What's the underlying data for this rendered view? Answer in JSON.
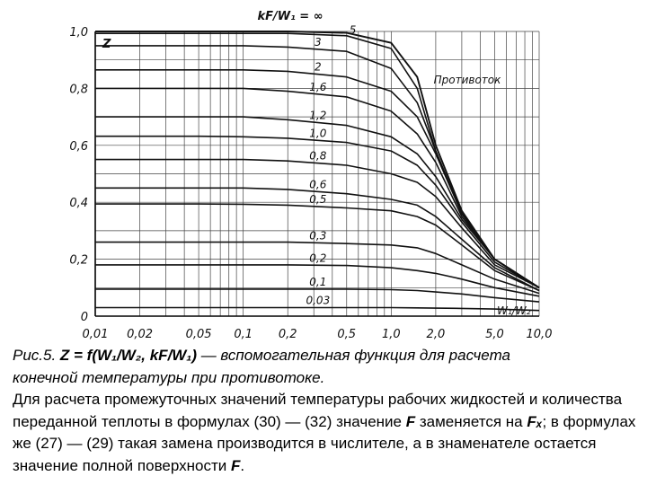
{
  "chart_data": {
    "type": "line",
    "title": "kF/W₁ = ∞",
    "ylabel": "Z",
    "xlabel": "W₁/W₂",
    "xscale": "log",
    "xlim": [
      0.01,
      10.0
    ],
    "ylim": [
      0,
      1.0
    ],
    "x_ticks": [
      "0,01",
      "0,02",
      "0,05",
      "0,1",
      "0,2",
      "0,5",
      "1,0",
      "2,0",
      "5,0",
      "10,0"
    ],
    "y_ticks": [
      "0",
      "0,2",
      "0,4",
      "0,6",
      "0,8",
      "1,0"
    ],
    "annotations": [
      "Противоток"
    ],
    "grid": true,
    "x": [
      0.01,
      0.02,
      0.05,
      0.1,
      0.2,
      0.5,
      1.0,
      1.5,
      2.0,
      3.0,
      5.0,
      10.0
    ],
    "series": [
      {
        "name": "∞",
        "values": [
          1.0,
          1.0,
          1.0,
          1.0,
          1.0,
          0.995,
          0.96,
          0.84,
          0.6,
          0.37,
          0.2,
          0.1
        ]
      },
      {
        "name": "5",
        "values": [
          0.993,
          0.993,
          0.993,
          0.993,
          0.993,
          0.985,
          0.94,
          0.8,
          0.58,
          0.36,
          0.2,
          0.1
        ]
      },
      {
        "name": "3",
        "values": [
          0.95,
          0.95,
          0.95,
          0.95,
          0.945,
          0.93,
          0.87,
          0.75,
          0.58,
          0.36,
          0.2,
          0.1
        ]
      },
      {
        "name": "2",
        "values": [
          0.865,
          0.865,
          0.865,
          0.865,
          0.86,
          0.84,
          0.79,
          0.7,
          0.57,
          0.36,
          0.2,
          0.1
        ]
      },
      {
        "name": "1,6",
        "values": [
          0.8,
          0.8,
          0.8,
          0.8,
          0.79,
          0.77,
          0.72,
          0.64,
          0.54,
          0.35,
          0.2,
          0.1
        ]
      },
      {
        "name": "1,2",
        "values": [
          0.7,
          0.7,
          0.7,
          0.7,
          0.69,
          0.67,
          0.63,
          0.57,
          0.49,
          0.34,
          0.2,
          0.1
        ]
      },
      {
        "name": "1,0",
        "values": [
          0.632,
          0.632,
          0.632,
          0.63,
          0.625,
          0.61,
          0.58,
          0.53,
          0.46,
          0.33,
          0.19,
          0.1
        ]
      },
      {
        "name": "0,8",
        "values": [
          0.55,
          0.55,
          0.55,
          0.55,
          0.545,
          0.53,
          0.5,
          0.47,
          0.42,
          0.31,
          0.18,
          0.1
        ]
      },
      {
        "name": "0,6",
        "values": [
          0.45,
          0.45,
          0.45,
          0.45,
          0.445,
          0.43,
          0.41,
          0.39,
          0.35,
          0.27,
          0.17,
          0.09
        ]
      },
      {
        "name": "0,5",
        "values": [
          0.394,
          0.394,
          0.394,
          0.393,
          0.39,
          0.38,
          0.37,
          0.35,
          0.32,
          0.25,
          0.16,
          0.09
        ]
      },
      {
        "name": "0,3",
        "values": [
          0.26,
          0.26,
          0.26,
          0.26,
          0.26,
          0.255,
          0.25,
          0.24,
          0.22,
          0.18,
          0.13,
          0.08
        ]
      },
      {
        "name": "0,2",
        "values": [
          0.18,
          0.18,
          0.18,
          0.18,
          0.18,
          0.178,
          0.17,
          0.16,
          0.15,
          0.13,
          0.1,
          0.07
        ]
      },
      {
        "name": "0,1",
        "values": [
          0.095,
          0.095,
          0.095,
          0.095,
          0.095,
          0.095,
          0.093,
          0.09,
          0.085,
          0.078,
          0.065,
          0.05
        ]
      },
      {
        "name": "0,03",
        "values": [
          0.03,
          0.03,
          0.03,
          0.03,
          0.03,
          0.03,
          0.03,
          0.029,
          0.028,
          0.027,
          0.025,
          0.02
        ]
      }
    ]
  },
  "caption": {
    "line1_pre": "Рис.5. ",
    "line1_formula": "Z = f(W₁/W₂, kF/W₁)",
    "line1_post": " — вспомогательная функция для расчета",
    "line2": "конечной температуры при противотоке.",
    "paragraph": "Для расчета промежуточных значений температуры рабочих жидкостей и количества переданной теплоты в формулах (30) — (32) значение",
    "symbol_F": "F",
    "text_mid1": " заменяется на ",
    "symbol_Fx": "Fₓ",
    "text_mid2": "; в формулах же (27) — (29) такая замена производится в числителе, а в знаменателе остается значение полной поверхности ",
    "end_dot": "."
  }
}
